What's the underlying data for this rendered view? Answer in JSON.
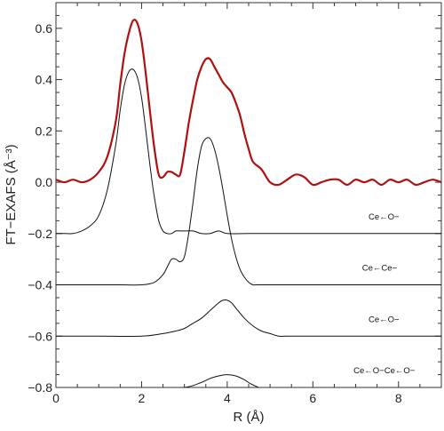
{
  "chart_data": {
    "type": "line",
    "xlabel": "R (Å)",
    "ylabel": "FT−EXAFS (Å⁻³)",
    "xlim": [
      0,
      9
    ],
    "ylim": [
      -0.8,
      0.7
    ],
    "xticks": [
      0,
      2,
      4,
      6,
      8
    ],
    "yticks": [
      -0.8,
      -0.6,
      -0.4,
      -0.2,
      0.0,
      0.2,
      0.4,
      0.6
    ],
    "ytick_labels": [
      "−0.8",
      "−0.6",
      "−0.4",
      "−0.2",
      "0.0",
      "0.2",
      "0.4",
      "0.6"
    ],
    "grid": false,
    "series": [
      {
        "color": "#b01010",
        "x": [
          0.0,
          0.2,
          0.4,
          0.6,
          0.8,
          1.0,
          1.2,
          1.4,
          1.5,
          1.6,
          1.7,
          1.8,
          1.9,
          2.0,
          2.1,
          2.2,
          2.3,
          2.4,
          2.5,
          2.6,
          2.7,
          2.8,
          2.9,
          3.0,
          3.1,
          3.2,
          3.3,
          3.4,
          3.5,
          3.6,
          3.7,
          3.8,
          3.9,
          4.0,
          4.1,
          4.2,
          4.3,
          4.4,
          4.5,
          4.6,
          4.8,
          5.0,
          5.2,
          5.4,
          5.6,
          5.8,
          6.0,
          6.2,
          6.4,
          6.6,
          6.8,
          7.0,
          7.2,
          7.4,
          7.6,
          7.8,
          8.0,
          8.2,
          8.4,
          8.6,
          8.8,
          9.0
        ],
        "y": [
          0.01,
          0.0,
          0.01,
          0.0,
          0.01,
          0.04,
          0.1,
          0.24,
          0.38,
          0.5,
          0.58,
          0.63,
          0.62,
          0.55,
          0.42,
          0.27,
          0.13,
          0.03,
          0.02,
          0.04,
          0.04,
          0.03,
          0.03,
          0.12,
          0.23,
          0.32,
          0.4,
          0.45,
          0.48,
          0.48,
          0.45,
          0.42,
          0.39,
          0.37,
          0.35,
          0.31,
          0.26,
          0.19,
          0.13,
          0.08,
          0.05,
          0.0,
          -0.01,
          0.01,
          0.03,
          0.02,
          -0.01,
          0.0,
          0.01,
          0.01,
          -0.01,
          0.01,
          0.0,
          0.01,
          -0.01,
          0.01,
          0.0,
          0.01,
          -0.01,
          0.0,
          0.01,
          0.0
        ]
      },
      {
        "name": "Ce←O−",
        "color": "#111111",
        "x": [
          0.0,
          0.2,
          0.4,
          0.6,
          0.8,
          1.0,
          1.2,
          1.4,
          1.5,
          1.6,
          1.7,
          1.8,
          1.9,
          2.0,
          2.1,
          2.2,
          2.3,
          2.4,
          2.5,
          2.6,
          2.7,
          2.8,
          2.9,
          3.0,
          3.2,
          3.4,
          3.6,
          3.8,
          4.0,
          4.5,
          5.0,
          6.0,
          7.0,
          8.0,
          9.0
        ],
        "y": [
          -0.2,
          -0.2,
          -0.2,
          -0.19,
          -0.17,
          -0.13,
          -0.03,
          0.15,
          0.28,
          0.38,
          0.43,
          0.44,
          0.41,
          0.33,
          0.2,
          0.06,
          -0.06,
          -0.15,
          -0.19,
          -0.2,
          -0.2,
          -0.19,
          -0.19,
          -0.19,
          -0.19,
          -0.2,
          -0.2,
          -0.19,
          -0.2,
          -0.2,
          -0.2,
          -0.2,
          -0.2,
          -0.2,
          -0.2
        ]
      },
      {
        "name": "Ce←Ce−",
        "color": "#111111",
        "x": [
          0.0,
          0.5,
          1.0,
          1.5,
          2.0,
          2.3,
          2.5,
          2.6,
          2.7,
          2.8,
          2.9,
          3.0,
          3.1,
          3.2,
          3.3,
          3.4,
          3.5,
          3.6,
          3.7,
          3.8,
          3.9,
          4.0,
          4.1,
          4.2,
          4.3,
          4.4,
          4.5,
          4.6,
          4.7,
          5.0,
          5.5,
          6.0,
          7.0,
          8.0,
          9.0
        ],
        "y": [
          -0.4,
          -0.4,
          -0.4,
          -0.4,
          -0.4,
          -0.39,
          -0.36,
          -0.33,
          -0.3,
          -0.3,
          -0.31,
          -0.29,
          -0.2,
          -0.08,
          0.05,
          0.14,
          0.17,
          0.17,
          0.13,
          0.06,
          -0.03,
          -0.13,
          -0.22,
          -0.29,
          -0.34,
          -0.37,
          -0.39,
          -0.4,
          -0.4,
          -0.4,
          -0.4,
          -0.4,
          -0.4,
          -0.4,
          -0.4
        ]
      },
      {
        "name": "Ce←O−",
        "color": "#111111",
        "x": [
          0.0,
          1.0,
          2.0,
          2.5,
          2.8,
          3.0,
          3.2,
          3.4,
          3.6,
          3.8,
          3.9,
          4.0,
          4.1,
          4.2,
          4.4,
          4.6,
          4.8,
          5.0,
          5.2,
          5.4,
          6.0,
          7.0,
          8.0,
          9.0
        ],
        "y": [
          -0.6,
          -0.6,
          -0.6,
          -0.59,
          -0.58,
          -0.57,
          -0.55,
          -0.53,
          -0.5,
          -0.47,
          -0.46,
          -0.46,
          -0.47,
          -0.49,
          -0.53,
          -0.56,
          -0.58,
          -0.59,
          -0.6,
          -0.6,
          -0.6,
          -0.6,
          -0.6,
          -0.6
        ]
      },
      {
        "name": "Ce←O−Ce←O−",
        "color": "#111111",
        "x": [
          0.0,
          2.0,
          3.0,
          3.4,
          3.6,
          3.8,
          4.0,
          4.2,
          4.4,
          4.6,
          5.0,
          6.0,
          9.0
        ],
        "y": [
          -0.81,
          -0.81,
          -0.8,
          -0.78,
          -0.765,
          -0.755,
          -0.75,
          -0.755,
          -0.77,
          -0.79,
          -0.81,
          -0.81,
          -0.81
        ]
      }
    ],
    "annotations": [
      {
        "text": "Ce←O−",
        "x": 7.3,
        "y": -0.145
      },
      {
        "text": "Ce←Ce−",
        "x": 7.15,
        "y": -0.345
      },
      {
        "text": "Ce←O−",
        "x": 7.3,
        "y": -0.545
      },
      {
        "text": "Ce←O−Ce←O−",
        "x": 6.95,
        "y": -0.745
      }
    ]
  }
}
